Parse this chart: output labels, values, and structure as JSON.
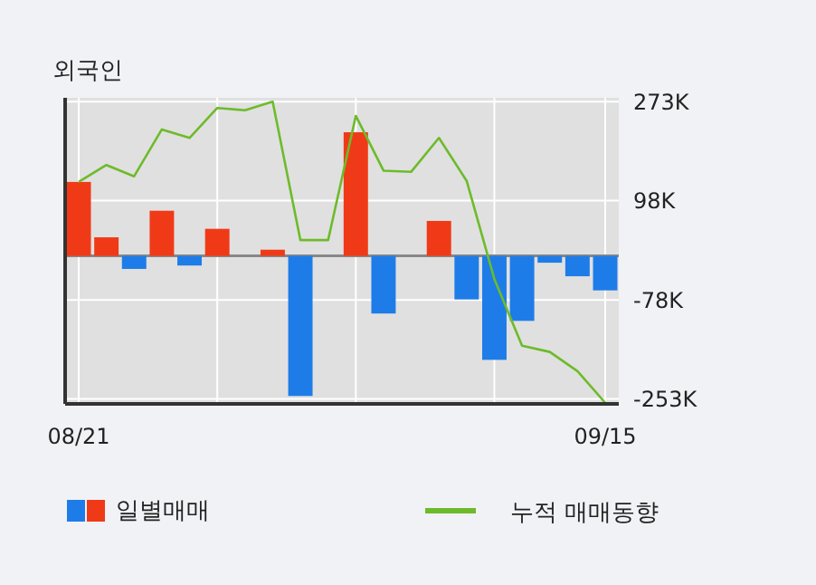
{
  "chart_data": {
    "type": "bar",
    "title": "외국인",
    "categories": [
      "08/21",
      null,
      null,
      null,
      null,
      null,
      null,
      null,
      null,
      null,
      null,
      null,
      null,
      null,
      null,
      null,
      null,
      null,
      null,
      "09/15"
    ],
    "series": [
      {
        "name": "일별매매",
        "colors": [
          "#f03a17",
          "#f03a17",
          "#1e7ce8",
          "#f03a17",
          "#1e7ce8",
          "#f03a17",
          "#f03a17",
          "#f03a17",
          "#1e7ce8",
          "#f03a17",
          "#f03a17",
          "#1e7ce8",
          "#f03a17",
          "#f03a17",
          "#1e7ce8",
          "#1e7ce8",
          "#1e7ce8",
          "#1e7ce8",
          "#1e7ce8",
          "#1e7ce8"
        ],
        "values": [
          131000,
          33000,
          -23000,
          80000,
          -17000,
          48000,
          0,
          11000,
          -248000,
          0,
          219000,
          -102000,
          0,
          62000,
          -77000,
          -184000,
          -115000,
          -12000,
          -36000,
          -61000
        ]
      },
      {
        "name": "누적 매매동향",
        "type": "line",
        "color": "#6dbb2a",
        "values": [
          131000,
          161000,
          141000,
          224000,
          209000,
          262000,
          258000,
          273000,
          28000,
          28000,
          248000,
          151000,
          149000,
          209000,
          133000,
          -41000,
          -159000,
          -170000,
          -204000,
          -260000
        ]
      }
    ],
    "ylim": [
      -262000,
      280000
    ],
    "yticks": [
      {
        "value": 273000,
        "label": "273K"
      },
      {
        "value": 98000,
        "label": "98K"
      },
      {
        "value": -78000,
        "label": "-78K"
      },
      {
        "value": -253000,
        "label": "-253K"
      }
    ],
    "grid": true,
    "legend": "bottom"
  }
}
